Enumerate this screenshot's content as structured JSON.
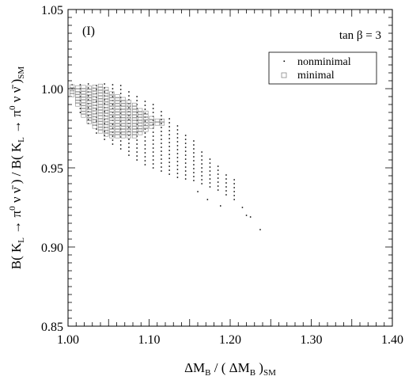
{
  "chart_data": {
    "type": "scatter",
    "panel_label": "(I)",
    "annotation": "tan β = 3",
    "xlabel": {
      "main": "ΔM",
      "sub1": "B",
      "mid": " / ( ΔM",
      "sub2": "B",
      "end": " )",
      "sub3": "SM"
    },
    "ylabel": {
      "p1": "B( K",
      "s1": "L",
      "p2": " → π",
      "sup1": "0",
      "p3": " ν ν̄ ) / B( K",
      "s2": "L",
      "p4": " → π",
      "sup2": "0",
      "p5": " ν ν̄ )",
      "s3": "SM"
    },
    "xlim": [
      1.0,
      1.4
    ],
    "ylim": [
      0.85,
      1.05
    ],
    "xticks": [
      "1.00",
      "1.10",
      "1.20",
      "1.30",
      "1.40"
    ],
    "xtick_values": [
      1.0,
      1.1,
      1.2,
      1.3,
      1.4
    ],
    "yticks": [
      "0.85",
      "0.90",
      "0.95",
      "1.00",
      "1.05"
    ],
    "ytick_values": [
      0.85,
      0.9,
      0.95,
      1.0,
      1.05
    ],
    "legend_position": "top-right",
    "series": [
      {
        "name": "nonminimal",
        "marker": "dot",
        "color": "#000000",
        "region_bounds": [
          [
            1.005,
            1.0,
            1.003
          ],
          [
            1.015,
            0.985,
            1.003
          ],
          [
            1.025,
            0.978,
            1.003
          ],
          [
            1.035,
            0.972,
            1.003
          ],
          [
            1.045,
            0.968,
            1.003
          ],
          [
            1.055,
            0.965,
            1.003
          ],
          [
            1.065,
            0.962,
            1.002
          ],
          [
            1.075,
            0.958,
            1.0
          ],
          [
            1.085,
            0.955,
            0.996
          ],
          [
            1.095,
            0.952,
            0.993
          ],
          [
            1.105,
            0.95,
            0.99
          ],
          [
            1.115,
            0.948,
            0.986
          ],
          [
            1.125,
            0.946,
            0.982
          ],
          [
            1.135,
            0.944,
            0.977
          ],
          [
            1.145,
            0.943,
            0.972
          ],
          [
            1.155,
            0.942,
            0.967
          ],
          [
            1.165,
            0.94,
            0.962
          ],
          [
            1.175,
            0.938,
            0.957
          ],
          [
            1.185,
            0.936,
            0.952
          ],
          [
            1.195,
            0.933,
            0.947
          ],
          [
            1.205,
            0.93,
            0.943
          ]
        ],
        "tail_points": [
          [
            1.215,
            0.925
          ],
          [
            1.22,
            0.92
          ],
          [
            1.225,
            0.919
          ],
          [
            1.237,
            0.911
          ],
          [
            1.188,
            0.926
          ],
          [
            1.172,
            0.93
          ],
          [
            1.16,
            0.935
          ]
        ]
      },
      {
        "name": "minimal",
        "marker": "open-square",
        "color": "#888888",
        "region_bounds": [
          [
            1.005,
            0.996,
            1.002
          ],
          [
            1.012,
            0.99,
            1.002
          ],
          [
            1.019,
            0.983,
            1.002
          ],
          [
            1.026,
            0.979,
            1.002
          ],
          [
            1.033,
            0.976,
            1.002
          ],
          [
            1.04,
            0.973,
            1.002
          ],
          [
            1.047,
            0.971,
            1.0
          ],
          [
            1.054,
            0.97,
            0.998
          ],
          [
            1.061,
            0.97,
            0.996
          ],
          [
            1.068,
            0.97,
            0.994
          ],
          [
            1.075,
            0.97,
            0.992
          ],
          [
            1.082,
            0.97,
            0.99
          ],
          [
            1.089,
            0.972,
            0.988
          ],
          [
            1.096,
            0.974,
            0.986
          ],
          [
            1.103,
            0.976,
            0.983
          ],
          [
            1.11,
            0.978,
            0.981
          ],
          [
            1.116,
            0.978,
            0.98
          ]
        ]
      }
    ]
  }
}
